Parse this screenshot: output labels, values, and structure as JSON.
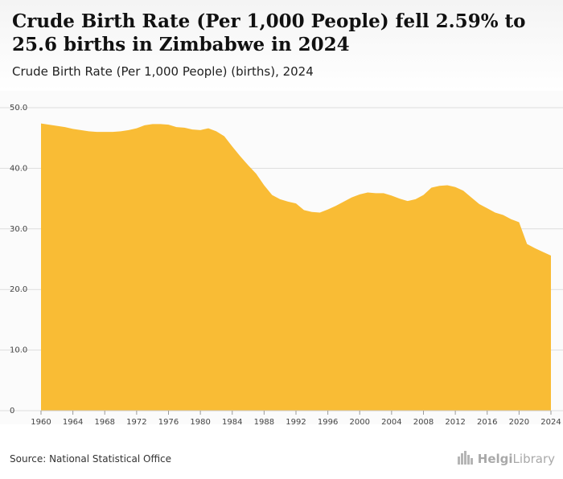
{
  "header": {
    "title": "Crude Birth Rate (Per 1,000 People) fell 2.59% to 25.6 births in Zimbabwe in 2024",
    "subtitle": "Crude Birth Rate (Per 1,000 People) (births), 2024"
  },
  "footer": {
    "source": "Source: National Statistical Office",
    "brand_part1": "Helgi",
    "brand_part2": "Library"
  },
  "colors": {
    "area_fill": "#f9bc35",
    "grid": "#dddddd",
    "background": "#fbfbfb"
  },
  "icons": {
    "brand_logo": "city-skyline-icon"
  },
  "chart_data": {
    "type": "area",
    "title": "Crude Birth Rate (Per 1,000 People) fell 2.59% to 25.6 births in Zimbabwe in 2024",
    "xlabel": "",
    "ylabel": "",
    "ylim": [
      0,
      50
    ],
    "y_ticks": [
      "0",
      "10.0",
      "20.0",
      "30.0",
      "40.0",
      "50.0"
    ],
    "x_ticks": [
      "1960",
      "1964",
      "1968",
      "1972",
      "1976",
      "1980",
      "1984",
      "1988",
      "1992",
      "1996",
      "2000",
      "2004",
      "2008",
      "2012",
      "2016",
      "2020",
      "2024"
    ],
    "grid": true,
    "legend": "none",
    "x": [
      1960,
      1961,
      1962,
      1963,
      1964,
      1965,
      1966,
      1967,
      1968,
      1969,
      1970,
      1971,
      1972,
      1973,
      1974,
      1975,
      1976,
      1977,
      1978,
      1979,
      1980,
      1981,
      1982,
      1983,
      1984,
      1985,
      1986,
      1987,
      1988,
      1989,
      1990,
      1991,
      1992,
      1993,
      1994,
      1995,
      1996,
      1997,
      1998,
      1999,
      2000,
      2001,
      2002,
      2003,
      2004,
      2005,
      2006,
      2007,
      2008,
      2009,
      2010,
      2011,
      2012,
      2013,
      2014,
      2015,
      2016,
      2017,
      2018,
      2019,
      2020,
      2021,
      2022,
      2023,
      2024
    ],
    "series": [
      {
        "values": [
          47.4,
          47.2,
          47.0,
          46.8,
          46.5,
          46.3,
          46.1,
          46.0,
          46.0,
          46.0,
          46.1,
          46.3,
          46.6,
          47.1,
          47.3,
          47.3,
          47.2,
          46.8,
          46.7,
          46.4,
          46.3,
          46.6,
          46.1,
          45.3,
          43.6,
          42.0,
          40.5,
          39.1,
          37.2,
          35.6,
          34.9,
          34.5,
          34.2,
          33.1,
          32.8,
          32.7,
          33.2,
          33.8,
          34.5,
          35.2,
          35.7,
          36.0,
          35.9,
          35.9,
          35.5,
          35.0,
          34.6,
          34.9,
          35.6,
          36.8,
          37.1,
          37.2,
          36.9,
          36.3,
          35.2,
          34.1,
          33.4,
          32.7,
          32.3,
          31.6,
          31.1,
          27.5,
          26.8,
          26.2,
          25.6
        ]
      }
    ]
  }
}
